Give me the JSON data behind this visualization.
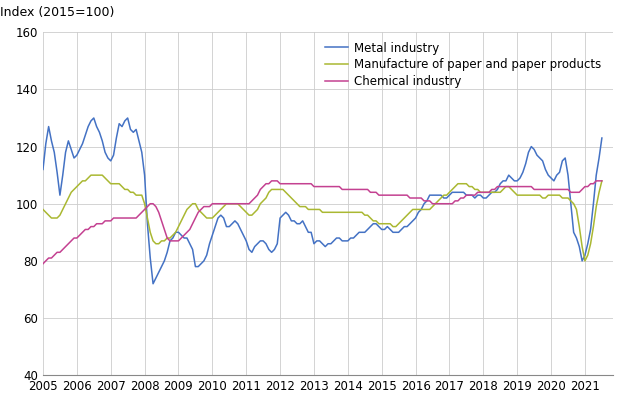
{
  "ylabel": "Index (2015=100)",
  "ylim": [
    40,
    160
  ],
  "yticks": [
    40,
    60,
    80,
    100,
    120,
    140,
    160
  ],
  "xlim": [
    2005.0,
    2021.83
  ],
  "background_color": "#ffffff",
  "grid_color": "#cccccc",
  "series": {
    "metal": {
      "label": "Metal industry",
      "color": "#4472c4",
      "data": [
        112,
        121,
        127,
        122,
        118,
        111,
        103,
        110,
        118,
        122,
        119,
        116,
        117,
        119,
        121,
        124,
        127,
        129,
        130,
        127,
        125,
        122,
        118,
        116,
        115,
        117,
        123,
        128,
        127,
        129,
        130,
        126,
        125,
        126,
        122,
        118,
        110,
        93,
        81,
        72,
        74,
        76,
        78,
        80,
        83,
        87,
        88,
        90,
        90,
        89,
        88,
        88,
        86,
        84,
        78,
        78,
        79,
        80,
        82,
        86,
        89,
        92,
        95,
        96,
        95,
        92,
        92,
        93,
        94,
        93,
        91,
        89,
        87,
        84,
        83,
        85,
        86,
        87,
        87,
        86,
        84,
        83,
        84,
        86,
        95,
        96,
        97,
        96,
        94,
        94,
        93,
        93,
        94,
        92,
        90,
        90,
        86,
        87,
        87,
        86,
        85,
        86,
        86,
        87,
        88,
        88,
        87,
        87,
        87,
        88,
        88,
        89,
        90,
        90,
        90,
        91,
        92,
        93,
        93,
        92,
        91,
        91,
        92,
        91,
        90,
        90,
        90,
        91,
        92,
        92,
        93,
        94,
        95,
        97,
        98,
        100,
        101,
        103,
        103,
        103,
        103,
        103,
        102,
        102,
        103,
        104,
        104,
        104,
        104,
        104,
        103,
        103,
        103,
        102,
        103,
        103,
        102,
        102,
        103,
        104,
        104,
        105,
        107,
        108,
        108,
        110,
        109,
        108,
        108,
        109,
        111,
        114,
        118,
        120,
        119,
        117,
        116,
        115,
        112,
        110,
        109,
        108,
        110,
        111,
        115,
        116,
        110,
        100,
        90,
        88,
        85,
        80,
        82,
        86,
        91,
        100,
        110,
        116,
        123
      ]
    },
    "paper": {
      "label": "Manufacture of paper and paper products",
      "color": "#aab832",
      "data": [
        98,
        97,
        96,
        95,
        95,
        95,
        96,
        98,
        100,
        102,
        104,
        105,
        106,
        107,
        108,
        108,
        109,
        110,
        110,
        110,
        110,
        110,
        109,
        108,
        107,
        107,
        107,
        107,
        106,
        105,
        105,
        104,
        104,
        103,
        103,
        103,
        100,
        95,
        90,
        87,
        86,
        86,
        87,
        87,
        88,
        88,
        89,
        90,
        92,
        94,
        96,
        98,
        99,
        100,
        100,
        98,
        97,
        96,
        95,
        95,
        95,
        96,
        97,
        98,
        99,
        100,
        100,
        100,
        100,
        100,
        99,
        98,
        97,
        96,
        96,
        97,
        98,
        100,
        101,
        102,
        104,
        105,
        105,
        105,
        105,
        105,
        104,
        103,
        102,
        101,
        100,
        99,
        99,
        99,
        98,
        98,
        98,
        98,
        98,
        97,
        97,
        97,
        97,
        97,
        97,
        97,
        97,
        97,
        97,
        97,
        97,
        97,
        97,
        97,
        96,
        96,
        95,
        94,
        94,
        93,
        93,
        93,
        93,
        93,
        92,
        92,
        93,
        94,
        95,
        96,
        97,
        98,
        98,
        98,
        98,
        98,
        98,
        98,
        99,
        100,
        101,
        102,
        103,
        103,
        104,
        105,
        106,
        107,
        107,
        107,
        107,
        106,
        106,
        105,
        105,
        104,
        104,
        104,
        104,
        104,
        104,
        104,
        104,
        105,
        106,
        106,
        105,
        104,
        103,
        103,
        103,
        103,
        103,
        103,
        103,
        103,
        103,
        102,
        102,
        103,
        103,
        103,
        103,
        103,
        102,
        102,
        102,
        101,
        100,
        98,
        92,
        85,
        80,
        82,
        86,
        92,
        99,
        104,
        108
      ]
    },
    "chemical": {
      "label": "Chemical industry",
      "color": "#c44191",
      "data": [
        79,
        80,
        81,
        81,
        82,
        83,
        83,
        84,
        85,
        86,
        87,
        88,
        88,
        89,
        90,
        91,
        91,
        92,
        92,
        93,
        93,
        93,
        94,
        94,
        94,
        95,
        95,
        95,
        95,
        95,
        95,
        95,
        95,
        95,
        96,
        97,
        98,
        99,
        100,
        100,
        99,
        97,
        94,
        91,
        88,
        87,
        87,
        87,
        87,
        88,
        89,
        90,
        91,
        93,
        95,
        97,
        98,
        99,
        99,
        99,
        100,
        100,
        100,
        100,
        100,
        100,
        100,
        100,
        100,
        100,
        100,
        100,
        100,
        100,
        101,
        102,
        103,
        105,
        106,
        107,
        107,
        108,
        108,
        108,
        107,
        107,
        107,
        107,
        107,
        107,
        107,
        107,
        107,
        107,
        107,
        107,
        106,
        106,
        106,
        106,
        106,
        106,
        106,
        106,
        106,
        106,
        105,
        105,
        105,
        105,
        105,
        105,
        105,
        105,
        105,
        105,
        104,
        104,
        104,
        103,
        103,
        103,
        103,
        103,
        103,
        103,
        103,
        103,
        103,
        103,
        102,
        102,
        102,
        102,
        102,
        101,
        101,
        101,
        100,
        100,
        100,
        100,
        100,
        100,
        100,
        100,
        101,
        101,
        102,
        102,
        103,
        103,
        103,
        103,
        104,
        104,
        104,
        104,
        104,
        105,
        105,
        106,
        106,
        106,
        106,
        106,
        106,
        106,
        106,
        106,
        106,
        106,
        106,
        106,
        105,
        105,
        105,
        105,
        105,
        105,
        105,
        105,
        105,
        105,
        105,
        105,
        105,
        104,
        104,
        104,
        104,
        105,
        106,
        106,
        107,
        107,
        108,
        108,
        108
      ]
    }
  }
}
